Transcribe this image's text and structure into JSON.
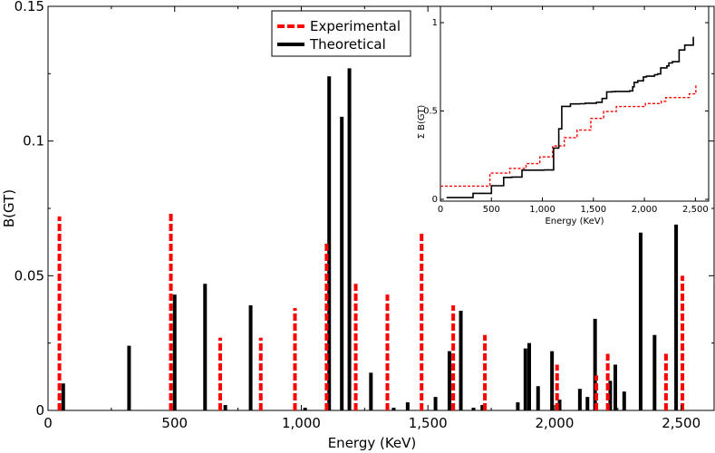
{
  "chart_data": [
    {
      "type": "bar",
      "role": "main",
      "xlabel": "Energy (KeV)",
      "ylabel": "B(GT)",
      "xlim": [
        0,
        2630
      ],
      "ylim": [
        0,
        0.15
      ],
      "xticks": [
        0,
        500,
        1000,
        1500,
        2000,
        2500
      ],
      "xtick_labels": [
        "0",
        "500",
        "1,000",
        "1,500",
        "2,000",
        "2,500"
      ],
      "yticks": [
        0,
        0.05,
        0.1,
        0.15
      ],
      "ytick_labels": [
        "0",
        "0.05",
        "0.1",
        "0.15"
      ],
      "legend_position": "top-center",
      "series": [
        {
          "name": "Experimental",
          "color": "#ff0000",
          "style": "dashed",
          "points": [
            {
              "x": 45,
              "y": 0.072
            },
            {
              "x": 485,
              "y": 0.073
            },
            {
              "x": 680,
              "y": 0.027
            },
            {
              "x": 840,
              "y": 0.027
            },
            {
              "x": 975,
              "y": 0.038
            },
            {
              "x": 1100,
              "y": 0.062
            },
            {
              "x": 1215,
              "y": 0.047
            },
            {
              "x": 1340,
              "y": 0.043
            },
            {
              "x": 1475,
              "y": 0.066
            },
            {
              "x": 1600,
              "y": 0.039
            },
            {
              "x": 1725,
              "y": 0.028
            },
            {
              "x": 2010,
              "y": 0.017
            },
            {
              "x": 2165,
              "y": 0.013
            },
            {
              "x": 2210,
              "y": 0.021
            },
            {
              "x": 2440,
              "y": 0.021
            },
            {
              "x": 2505,
              "y": 0.05
            }
          ]
        },
        {
          "name": "Theoretical",
          "color": "#000000",
          "style": "solid",
          "points": [
            {
              "x": 60,
              "y": 0.01
            },
            {
              "x": 320,
              "y": 0.024
            },
            {
              "x": 500,
              "y": 0.043
            },
            {
              "x": 620,
              "y": 0.047
            },
            {
              "x": 700,
              "y": 0.002
            },
            {
              "x": 800,
              "y": 0.039
            },
            {
              "x": 1015,
              "y": 0.001
            },
            {
              "x": 1110,
              "y": 0.124
            },
            {
              "x": 1160,
              "y": 0.109
            },
            {
              "x": 1190,
              "y": 0.127
            },
            {
              "x": 1275,
              "y": 0.014
            },
            {
              "x": 1365,
              "y": 0.001
            },
            {
              "x": 1420,
              "y": 0.003
            },
            {
              "x": 1530,
              "y": 0.005
            },
            {
              "x": 1585,
              "y": 0.022
            },
            {
              "x": 1630,
              "y": 0.037
            },
            {
              "x": 1680,
              "y": 0.001
            },
            {
              "x": 1715,
              "y": 0.002
            },
            {
              "x": 1855,
              "y": 0.003
            },
            {
              "x": 1885,
              "y": 0.023
            },
            {
              "x": 1900,
              "y": 0.025
            },
            {
              "x": 1935,
              "y": 0.009
            },
            {
              "x": 1990,
              "y": 0.022
            },
            {
              "x": 2020,
              "y": 0.004
            },
            {
              "x": 2100,
              "y": 0.008
            },
            {
              "x": 2130,
              "y": 0.005
            },
            {
              "x": 2160,
              "y": 0.034
            },
            {
              "x": 2220,
              "y": 0.011
            },
            {
              "x": 2240,
              "y": 0.017
            },
            {
              "x": 2275,
              "y": 0.007
            },
            {
              "x": 2340,
              "y": 0.066
            },
            {
              "x": 2395,
              "y": 0.028
            },
            {
              "x": 2480,
              "y": 0.069
            }
          ]
        }
      ]
    },
    {
      "type": "line",
      "role": "inset",
      "xlabel": "Energy (KeV)",
      "ylabel": "Σ B(GT)",
      "xlim": [
        0,
        2630
      ],
      "ylim": [
        0,
        1
      ],
      "xticks": [
        0,
        500,
        1000,
        1500,
        2000,
        2500
      ],
      "xtick_labels": [
        "0",
        "500",
        "1,000",
        "1,500",
        "2,000",
        "2,500"
      ],
      "yticks": [
        0,
        0.5,
        1
      ],
      "ytick_labels": [
        "0",
        "0.5",
        "1"
      ],
      "series": [
        {
          "name": "Experimental",
          "color": "#ff0000",
          "style": "dashed",
          "steps": [
            [
              0,
              0.075
            ],
            [
              485,
              0.075
            ],
            [
              485,
              0.148
            ],
            [
              680,
              0.148
            ],
            [
              680,
              0.175
            ],
            [
              840,
              0.175
            ],
            [
              840,
              0.202
            ],
            [
              975,
              0.202
            ],
            [
              975,
              0.24
            ],
            [
              1100,
              0.24
            ],
            [
              1100,
              0.302
            ],
            [
              1215,
              0.302
            ],
            [
              1215,
              0.349
            ],
            [
              1340,
              0.349
            ],
            [
              1340,
              0.392
            ],
            [
              1475,
              0.392
            ],
            [
              1475,
              0.458
            ],
            [
              1600,
              0.458
            ],
            [
              1600,
              0.497
            ],
            [
              1725,
              0.497
            ],
            [
              1725,
              0.525
            ],
            [
              2010,
              0.525
            ],
            [
              2010,
              0.542
            ],
            [
              2165,
              0.542
            ],
            [
              2165,
              0.555
            ],
            [
              2210,
              0.555
            ],
            [
              2210,
              0.576
            ],
            [
              2440,
              0.576
            ],
            [
              2440,
              0.597
            ],
            [
              2505,
              0.597
            ],
            [
              2505,
              0.647
            ]
          ]
        },
        {
          "name": "Theoretical",
          "color": "#000000",
          "style": "solid",
          "steps": [
            [
              60,
              0.01
            ],
            [
              320,
              0.01
            ],
            [
              320,
              0.034
            ],
            [
              500,
              0.034
            ],
            [
              500,
              0.077
            ],
            [
              620,
              0.077
            ],
            [
              620,
              0.124
            ],
            [
              700,
              0.124
            ],
            [
              700,
              0.126
            ],
            [
              800,
              0.126
            ],
            [
              800,
              0.165
            ],
            [
              1015,
              0.165
            ],
            [
              1015,
              0.166
            ],
            [
              1110,
              0.166
            ],
            [
              1110,
              0.29
            ],
            [
              1160,
              0.29
            ],
            [
              1160,
              0.399
            ],
            [
              1190,
              0.399
            ],
            [
              1190,
              0.526
            ],
            [
              1275,
              0.526
            ],
            [
              1275,
              0.54
            ],
            [
              1365,
              0.54
            ],
            [
              1365,
              0.541
            ],
            [
              1420,
              0.541
            ],
            [
              1420,
              0.544
            ],
            [
              1530,
              0.544
            ],
            [
              1530,
              0.549
            ],
            [
              1585,
              0.549
            ],
            [
              1585,
              0.571
            ],
            [
              1630,
              0.571
            ],
            [
              1630,
              0.608
            ],
            [
              1680,
              0.608
            ],
            [
              1680,
              0.609
            ],
            [
              1715,
              0.609
            ],
            [
              1715,
              0.611
            ],
            [
              1855,
              0.611
            ],
            [
              1855,
              0.614
            ],
            [
              1885,
              0.614
            ],
            [
              1885,
              0.637
            ],
            [
              1900,
              0.637
            ],
            [
              1900,
              0.662
            ],
            [
              1935,
              0.662
            ],
            [
              1935,
              0.671
            ],
            [
              1990,
              0.671
            ],
            [
              1990,
              0.693
            ],
            [
              2020,
              0.693
            ],
            [
              2020,
              0.697
            ],
            [
              2100,
              0.697
            ],
            [
              2100,
              0.705
            ],
            [
              2130,
              0.705
            ],
            [
              2130,
              0.71
            ],
            [
              2160,
              0.71
            ],
            [
              2160,
              0.744
            ],
            [
              2220,
              0.744
            ],
            [
              2220,
              0.755
            ],
            [
              2240,
              0.755
            ],
            [
              2240,
              0.772
            ],
            [
              2275,
              0.772
            ],
            [
              2275,
              0.779
            ],
            [
              2340,
              0.779
            ],
            [
              2340,
              0.845
            ],
            [
              2395,
              0.845
            ],
            [
              2395,
              0.873
            ],
            [
              2480,
              0.873
            ],
            [
              2480,
              0.92
            ]
          ]
        }
      ]
    }
  ]
}
